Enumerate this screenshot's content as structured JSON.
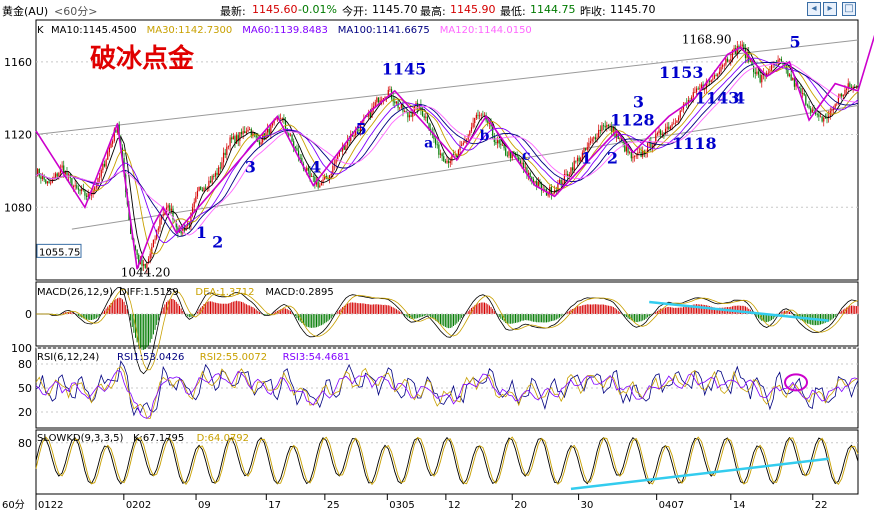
{
  "window": {
    "symbol": "黄金(AU)",
    "period": "<60分>",
    "last_label": "最新:",
    "last": "1145.60",
    "change": "-0.01%",
    "open_label": "今开:",
    "open": "1145.70",
    "high_label": "最高:",
    "high": "1145.90",
    "low_label": "最低:",
    "low": "1144.75",
    "prev_label": "昨收:",
    "prev": "1145.70",
    "bottom_left": "60分"
  },
  "colors": {
    "bg": "#ffffff",
    "axis": "#000000",
    "grid": "#c8c8c8",
    "up": "#d40000",
    "down": "#007a00",
    "ma10": "#000000",
    "ma30": "#c8a000",
    "ma60": "#8000ff",
    "ma100": "#000080",
    "ma120": "#ff66ff",
    "wave": "#cc00cc",
    "label": "#0000cc",
    "title": "#e00000",
    "cyan": "#33ccee"
  },
  "chart_data": [
    {
      "type": "candlestick",
      "title": "破冰点金",
      "legend": {
        "prefix": "K",
        "items": [
          {
            "name": "MA10:",
            "value": "1145.4500"
          },
          {
            "name": "MA30:",
            "value": "1142.7300"
          },
          {
            "name": "MA60:",
            "value": "1139.8483"
          },
          {
            "name": "MA100:",
            "value": "1141.6675"
          },
          {
            "name": "MA120:",
            "value": "1144.0150"
          }
        ]
      },
      "ylim": [
        1040,
        1183
      ],
      "y_ticks": [
        1080,
        1120,
        1160
      ],
      "x_ticks": [
        "0122",
        "0202",
        "09",
        "17",
        "25",
        "0305",
        "12",
        "20",
        "30",
        "0407",
        "14",
        "22"
      ],
      "price_flags": [
        {
          "label": "1055.75",
          "value": 1055.75
        }
      ],
      "price_path": [
        [
          0,
          1100
        ],
        [
          8,
          1092
        ],
        [
          16,
          1102
        ],
        [
          24,
          1090
        ],
        [
          32,
          1086
        ],
        [
          38,
          1094
        ],
        [
          44,
          1110
        ],
        [
          50,
          1126
        ],
        [
          54,
          1098
        ],
        [
          58,
          1066
        ],
        [
          63,
          1050
        ],
        [
          67,
          1046
        ],
        [
          72,
          1060
        ],
        [
          77,
          1076
        ],
        [
          82,
          1080
        ],
        [
          88,
          1066
        ],
        [
          94,
          1072
        ],
        [
          100,
          1090
        ],
        [
          106,
          1094
        ],
        [
          112,
          1100
        ],
        [
          118,
          1116
        ],
        [
          124,
          1118
        ],
        [
          130,
          1124
        ],
        [
          136,
          1116
        ],
        [
          143,
          1122
        ],
        [
          150,
          1130
        ],
        [
          156,
          1118
        ],
        [
          162,
          1106
        ],
        [
          168,
          1096
        ],
        [
          174,
          1092
        ],
        [
          180,
          1098
        ],
        [
          186,
          1110
        ],
        [
          192,
          1118
        ],
        [
          198,
          1124
        ],
        [
          204,
          1130
        ],
        [
          210,
          1140
        ],
        [
          216,
          1144
        ],
        [
          222,
          1136
        ],
        [
          228,
          1130
        ],
        [
          234,
          1136
        ],
        [
          240,
          1128
        ],
        [
          246,
          1112
        ],
        [
          252,
          1106
        ],
        [
          258,
          1108
        ],
        [
          264,
          1118
        ],
        [
          270,
          1130
        ],
        [
          276,
          1128
        ],
        [
          282,
          1116
        ],
        [
          288,
          1110
        ],
        [
          294,
          1108
        ],
        [
          300,
          1100
        ],
        [
          306,
          1094
        ],
        [
          312,
          1088
        ],
        [
          318,
          1090
        ],
        [
          324,
          1096
        ],
        [
          330,
          1104
        ],
        [
          336,
          1110
        ],
        [
          342,
          1118
        ],
        [
          348,
          1126
        ],
        [
          354,
          1122
        ],
        [
          360,
          1114
        ],
        [
          366,
          1106
        ],
        [
          372,
          1110
        ],
        [
          378,
          1116
        ],
        [
          384,
          1122
        ],
        [
          390,
          1126
        ],
        [
          396,
          1134
        ],
        [
          402,
          1140
        ],
        [
          408,
          1146
        ],
        [
          414,
          1150
        ],
        [
          420,
          1158
        ],
        [
          426,
          1164
        ],
        [
          432,
          1169
        ],
        [
          438,
          1160
        ],
        [
          444,
          1150
        ],
        [
          450,
          1156
        ],
        [
          456,
          1160
        ],
        [
          462,
          1152
        ],
        [
          468,
          1144
        ],
        [
          474,
          1136
        ],
        [
          480,
          1128
        ],
        [
          486,
          1130
        ],
        [
          492,
          1140
        ],
        [
          498,
          1146
        ],
        [
          504,
          1145.6
        ]
      ],
      "ma_lag": {
        "MA10": 6,
        "MA30": 14,
        "MA60": 22,
        "MA100": 30,
        "MA120": 36
      },
      "channel_upper": [
        [
          0,
          1120
        ],
        [
          504,
          1172
        ]
      ],
      "channel_lower": [
        [
          22,
          1068
        ],
        [
          504,
          1136
        ]
      ],
      "wave_path": [
        [
          0,
          1122
        ],
        [
          30,
          1080
        ],
        [
          50,
          1126
        ],
        [
          62,
          1046
        ],
        [
          72,
          1070
        ],
        [
          78,
          1080
        ],
        [
          86,
          1066
        ],
        [
          148,
          1130
        ],
        [
          170,
          1092
        ],
        [
          204,
          1132
        ],
        [
          220,
          1144
        ],
        [
          258,
          1106
        ],
        [
          276,
          1130
        ],
        [
          306,
          1092
        ],
        [
          318,
          1086
        ],
        [
          356,
          1122
        ],
        [
          366,
          1110
        ],
        [
          388,
          1130
        ],
        [
          404,
          1140
        ],
        [
          424,
          1164
        ],
        [
          432,
          1168
        ],
        [
          448,
          1152
        ],
        [
          462,
          1160
        ],
        [
          474,
          1128
        ],
        [
          490,
          1148
        ],
        [
          504,
          1144
        ],
        [
          516,
          1180
        ]
      ],
      "arrow_from": [
        504,
        1144
      ],
      "arrow_to": [
        520,
        1184
      ],
      "annotations": [
        {
          "text": "1145",
          "x": 212,
          "y": 1153,
          "size": 16
        },
        {
          "text": "1168.90",
          "x": 396,
          "y": 1170,
          "size": 12
        },
        {
          "text": "5",
          "x": 462,
          "y": 1168,
          "size": 16
        },
        {
          "text": "1153",
          "x": 382,
          "y": 1151,
          "size": 16
        },
        {
          "text": "3",
          "x": 366,
          "y": 1135,
          "size": 16
        },
        {
          "text": "1128",
          "x": 352,
          "y": 1125,
          "size": 16
        },
        {
          "text": "1143",
          "x": 404,
          "y": 1137,
          "size": 16
        },
        {
          "text": "4",
          "x": 428,
          "y": 1137,
          "size": 16
        },
        {
          "text": "1118",
          "x": 390,
          "y": 1112,
          "size": 16
        },
        {
          "text": "1",
          "x": 334,
          "y": 1104,
          "size": 16
        },
        {
          "text": "2",
          "x": 350,
          "y": 1104,
          "size": 16
        },
        {
          "text": "c",
          "x": 298,
          "y": 1106,
          "size": 14
        },
        {
          "text": "b",
          "x": 272,
          "y": 1117,
          "size": 14
        },
        {
          "text": "a",
          "x": 238,
          "y": 1113,
          "size": 14
        },
        {
          "text": "5",
          "x": 196,
          "y": 1120,
          "size": 16
        },
        {
          "text": "4",
          "x": 168,
          "y": 1099,
          "size": 16
        },
        {
          "text": "3",
          "x": 128,
          "y": 1099,
          "size": 16
        },
        {
          "text": "1",
          "x": 98,
          "y": 1063,
          "size": 16
        },
        {
          "text": "2",
          "x": 108,
          "y": 1058,
          "size": 16
        },
        {
          "text": "1044.20",
          "x": 52,
          "y": 1042,
          "size": 12
        }
      ]
    },
    {
      "type": "bar",
      "title": "MACD",
      "legend": {
        "prefix": "MACD(26,12,9)",
        "items": [
          {
            "name": "DIFF:",
            "value": "1.5159"
          },
          {
            "name": "DEA:",
            "value": "1.3712"
          },
          {
            "name": "MACD:",
            "value": "0.2895"
          }
        ]
      },
      "ylim": [
        -12,
        12
      ],
      "y_ticks": [
        0
      ],
      "trendline": [
        [
          376,
          4.5
        ],
        [
          486,
          -2.5
        ]
      ]
    },
    {
      "type": "line",
      "title": "RSI",
      "legend": {
        "prefix": "RSI(6,12,24)",
        "items": [
          {
            "name": "RSI1:",
            "value": "53.0426"
          },
          {
            "name": "RSI2:",
            "value": "55.0072"
          },
          {
            "name": "RSI3:",
            "value": "54.4681"
          }
        ]
      },
      "ylim": [
        0,
        100
      ],
      "y_ticks": [
        20,
        50,
        80,
        100
      ],
      "marker": {
        "x": 466,
        "y": 57
      }
    },
    {
      "type": "line",
      "title": "SLOWKD",
      "legend": {
        "prefix": "SLOWKD(9,3,3,5)",
        "items": [
          {
            "name": "K:",
            "value": "67.1795"
          },
          {
            "name": "D:",
            "value": "64.0792"
          }
        ]
      },
      "ylim": [
        0,
        100
      ],
      "y_ticks": [
        80
      ],
      "trendline": [
        [
          328,
          8
        ],
        [
          486,
          55
        ]
      ]
    }
  ]
}
